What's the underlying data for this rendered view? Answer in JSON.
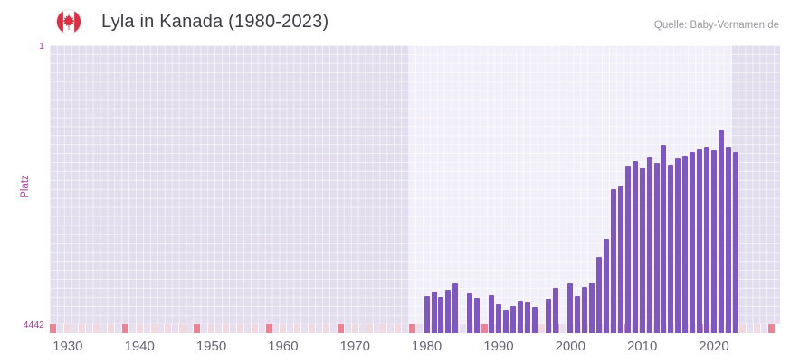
{
  "header": {
    "title": "Lyla in Kanada (1980-2023)",
    "source": "Quelle: Baby-Vornamen.de",
    "flag_icon": "canada-flag-icon"
  },
  "chart_data": {
    "type": "bar",
    "title": "Lyla in Kanada (1980-2023)",
    "xlabel": "",
    "ylabel": "Platz",
    "y_axis": {
      "domain": [
        1,
        4442
      ],
      "ticks": [
        1,
        4442
      ],
      "inverted": true
    },
    "x_axis": {
      "domain": [
        1927.5,
        2029.2
      ],
      "ticks": [
        1930,
        1940,
        1950,
        1960,
        1970,
        1980,
        1990,
        2000,
        2010,
        2020
      ]
    },
    "grid": true,
    "legend": "none",
    "highlight_band": {
      "from": 1977.5,
      "to": 2022.5
    },
    "strip": {
      "start": 1928,
      "end": 2028,
      "marker_interval": 10
    },
    "years": [
      1980,
      1981,
      1982,
      1983,
      1984,
      1985,
      1986,
      1987,
      1988,
      1989,
      1990,
      1991,
      1992,
      1993,
      1994,
      1995,
      1996,
      1997,
      1998,
      1999,
      2000,
      2001,
      2002,
      2003,
      2004,
      2005,
      2006,
      2007,
      2008,
      2009,
      2010,
      2011,
      2012,
      2013,
      2014,
      2015,
      2016,
      2017,
      2018,
      2019,
      2020,
      2021,
      2022,
      2023
    ],
    "ranks": [
      4000,
      3930,
      4010,
      3900,
      3790,
      null,
      3950,
      4020,
      null,
      3980,
      4120,
      4210,
      4150,
      4060,
      4090,
      4170,
      null,
      4040,
      3870,
      null,
      3800,
      3990,
      3850,
      3780,
      3380,
      3080,
      2290,
      2230,
      1920,
      1850,
      1950,
      1780,
      1870,
      1580,
      1900,
      1800,
      1760,
      1700,
      1660,
      1620,
      1680,
      1360,
      1620,
      1700
    ],
    "colors": {
      "bar": "#7e57c2",
      "plot_bg": "#e2deee",
      "grid": "#ffffff",
      "band": "rgba(255,255,255,0.5)",
      "strip_a": "#f3d8e2",
      "strip_b": "#e7def0",
      "strip_marker": "#ee8193",
      "y_tick": "#ad3aa0",
      "x_tick": "#6a6375",
      "flag_red": "#dd2e44"
    }
  }
}
